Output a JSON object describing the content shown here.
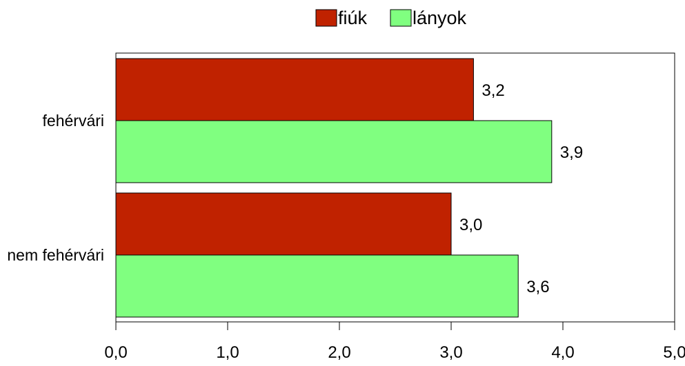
{
  "chart_data": {
    "type": "bar",
    "orientation": "horizontal",
    "categories": [
      "fehérvári",
      "nem fehérvári"
    ],
    "series": [
      {
        "name": "fiúk",
        "values": [
          3.2,
          3.0
        ],
        "color": "#C02200"
      },
      {
        "name": "lányok",
        "values": [
          3.9,
          3.6
        ],
        "color": "#80FF80"
      }
    ],
    "value_labels": [
      [
        "3,2",
        "3,0"
      ],
      [
        "3,9",
        "3,6"
      ]
    ],
    "x_ticks": [
      0.0,
      1.0,
      2.0,
      3.0,
      4.0,
      5.0
    ],
    "x_tick_labels": [
      "0,0",
      "1,0",
      "2,0",
      "3,0",
      "4,0",
      "5,0"
    ],
    "xlim": [
      0,
      5
    ],
    "grid": false,
    "legend_position": "top-center"
  }
}
